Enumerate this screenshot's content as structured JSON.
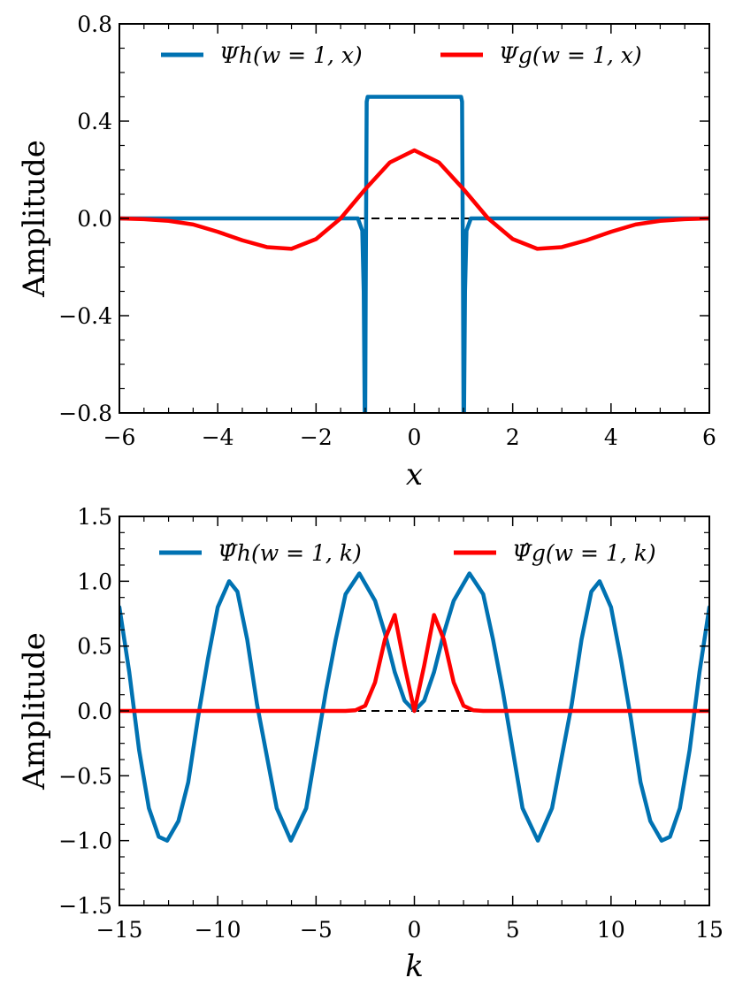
{
  "chart_data": [
    {
      "type": "line",
      "xlabel": "x",
      "ylabel": "Amplitude",
      "xlim": [
        -6,
        6
      ],
      "ylim": [
        -0.8,
        0.8
      ],
      "xticks": [
        -6,
        -4,
        -2,
        0,
        2,
        4,
        6
      ],
      "xtick_labels": [
        "−6",
        "−4",
        "−2",
        "0",
        "2",
        "4",
        "6"
      ],
      "yticks": [
        -0.8,
        -0.4,
        0.0,
        0.4,
        0.8
      ],
      "ytick_labels": [
        "−0.8",
        "−0.4",
        "0.0",
        "0.4",
        "0.8"
      ],
      "legend_position": "top",
      "grid": false,
      "zero_line": "dashed",
      "series": [
        {
          "name": "Ψh(w = 1, x)",
          "color": "#0072b2",
          "x": [
            -6,
            -1.15,
            -1.06,
            -1.03,
            -1.01,
            -1.0,
            -0.99,
            -0.97,
            -0.95,
            0.95,
            0.97,
            0.99,
            1.0,
            1.01,
            1.03,
            1.06,
            1.15,
            6
          ],
          "y": [
            0,
            0,
            -0.05,
            -0.3,
            -0.8,
            -0.8,
            -0.3,
            0.48,
            0.5,
            0.5,
            0.48,
            -0.3,
            -0.8,
            -0.8,
            -0.3,
            -0.05,
            0,
            0
          ]
        },
        {
          "name": "Ψg(w = 1, x)",
          "color": "#ff0000",
          "x": [
            -6,
            -5.5,
            -5,
            -4.5,
            -4,
            -3.5,
            -3,
            -2.5,
            -2,
            -1.5,
            -1,
            -0.5,
            0,
            0.5,
            1,
            1.5,
            2,
            2.5,
            3,
            3.5,
            4,
            4.5,
            5,
            5.5,
            6
          ],
          "y": [
            0,
            -0.003,
            -0.01,
            -0.025,
            -0.055,
            -0.09,
            -0.118,
            -0.125,
            -0.085,
            0.0,
            0.12,
            0.23,
            0.28,
            0.23,
            0.12,
            0.0,
            -0.085,
            -0.125,
            -0.118,
            -0.09,
            -0.055,
            -0.025,
            -0.01,
            -0.003,
            0
          ]
        }
      ]
    },
    {
      "type": "line",
      "xlabel": "k",
      "ylabel": "Amplitude",
      "xlim": [
        -15,
        15
      ],
      "ylim": [
        -1.5,
        1.5
      ],
      "xticks": [
        -15,
        -10,
        -5,
        0,
        5,
        10,
        15
      ],
      "xtick_labels": [
        "−15",
        "−10",
        "−5",
        "0",
        "5",
        "10",
        "15"
      ],
      "yticks": [
        -1.5,
        -1.0,
        -0.5,
        0.0,
        0.5,
        1.0,
        1.5
      ],
      "ytick_labels": [
        "−1.5",
        "−1.0",
        "−0.5",
        "0.0",
        "0.5",
        "1.0",
        "1.5"
      ],
      "legend_position": "top",
      "grid": false,
      "zero_line": "dashed",
      "series": [
        {
          "name": "Ψ̂h(w = 1, k)",
          "color": "#0072b2",
          "x": [
            -15,
            -14.5,
            -14,
            -13.5,
            -13,
            -12.57,
            -12,
            -11.5,
            -11,
            -10.5,
            -10,
            -9.42,
            -9,
            -8.5,
            -8,
            -7.5,
            -7,
            -6.28,
            -5.5,
            -5,
            -4.5,
            -4,
            -3.5,
            -2.8,
            -2,
            -1.5,
            -1,
            -0.5,
            0,
            0.5,
            1,
            1.5,
            2,
            2.8,
            3.5,
            4,
            4.5,
            5,
            5.5,
            6.28,
            7,
            7.5,
            8,
            8.5,
            9,
            9.42,
            10,
            10.5,
            11,
            11.5,
            12,
            12.57,
            13,
            13.5,
            14,
            14.5,
            15
          ],
          "y": [
            0.8,
            0.3,
            -0.3,
            -0.75,
            -0.97,
            -1.0,
            -0.85,
            -0.55,
            -0.05,
            0.4,
            0.8,
            1.0,
            0.92,
            0.55,
            0.05,
            -0.35,
            -0.75,
            -1.0,
            -0.75,
            -0.3,
            0.15,
            0.55,
            0.9,
            1.06,
            0.85,
            0.6,
            0.3,
            0.08,
            0.0,
            0.08,
            0.3,
            0.6,
            0.85,
            1.06,
            0.9,
            0.55,
            0.15,
            -0.3,
            -0.75,
            -1.0,
            -0.75,
            -0.35,
            0.05,
            0.55,
            0.92,
            1.0,
            0.8,
            0.4,
            -0.05,
            -0.55,
            -0.85,
            -1.0,
            -0.97,
            -0.75,
            -0.3,
            0.3,
            0.8
          ]
        },
        {
          "name": "Ψ̂g(w = 1, k)",
          "color": "#ff0000",
          "x": [
            -15,
            -3.5,
            -3,
            -2.5,
            -2,
            -1.5,
            -1,
            -0.5,
            0,
            0.5,
            1,
            1.5,
            2,
            2.5,
            3,
            3.5,
            15
          ],
          "y": [
            0,
            0.0,
            0.005,
            0.04,
            0.22,
            0.55,
            0.74,
            0.35,
            0.0,
            0.35,
            0.74,
            0.55,
            0.22,
            0.04,
            0.005,
            0.0,
            0
          ]
        }
      ]
    }
  ]
}
